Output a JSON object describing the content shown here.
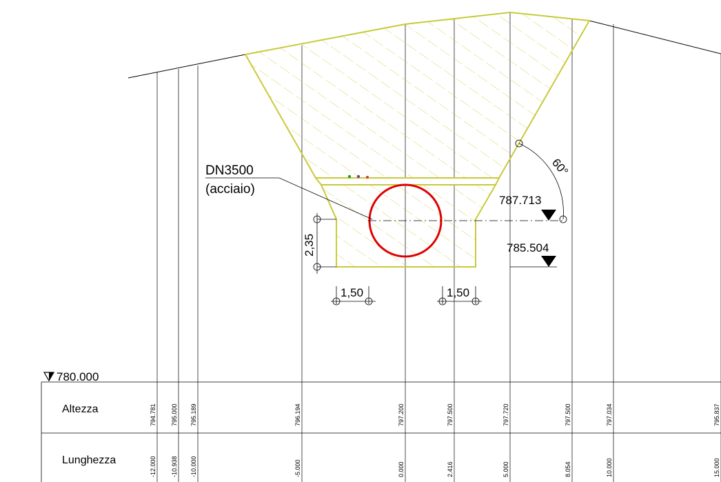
{
  "pipe": {
    "label": "DN3500",
    "material": "(acciaio)",
    "color": "#e00000"
  },
  "dimensions": {
    "trench_depth": "2,35",
    "offset_left": "1,50",
    "offset_right": "1,50",
    "slope_angle": "60°"
  },
  "levels": {
    "pipe_axis": "787.713",
    "trench_bottom": "785.504",
    "datum": "780.000"
  },
  "colors": {
    "fill_hatch": "#c9c93a",
    "outline": "#000000"
  },
  "profile_table": {
    "row_labels": [
      "Altezza",
      "Lunghezza"
    ],
    "stations": [
      {
        "altezza": "794.781",
        "lunghezza": "-12.000"
      },
      {
        "altezza": "795.000",
        "lunghezza": "-10.938"
      },
      {
        "altezza": "795.189",
        "lunghezza": "-10.000"
      },
      {
        "altezza": "796.194",
        "lunghezza": "-5.000"
      },
      {
        "altezza": "797.200",
        "lunghezza": "0.000"
      },
      {
        "altezza": "797.500",
        "lunghezza": "2.416"
      },
      {
        "altezza": "797.720",
        "lunghezza": "5.000"
      },
      {
        "altezza": "797.500",
        "lunghezza": "8.054"
      },
      {
        "altezza": "797.034",
        "lunghezza": "10.000"
      },
      {
        "altezza": "795.837",
        "lunghezza": "15.000"
      }
    ]
  }
}
